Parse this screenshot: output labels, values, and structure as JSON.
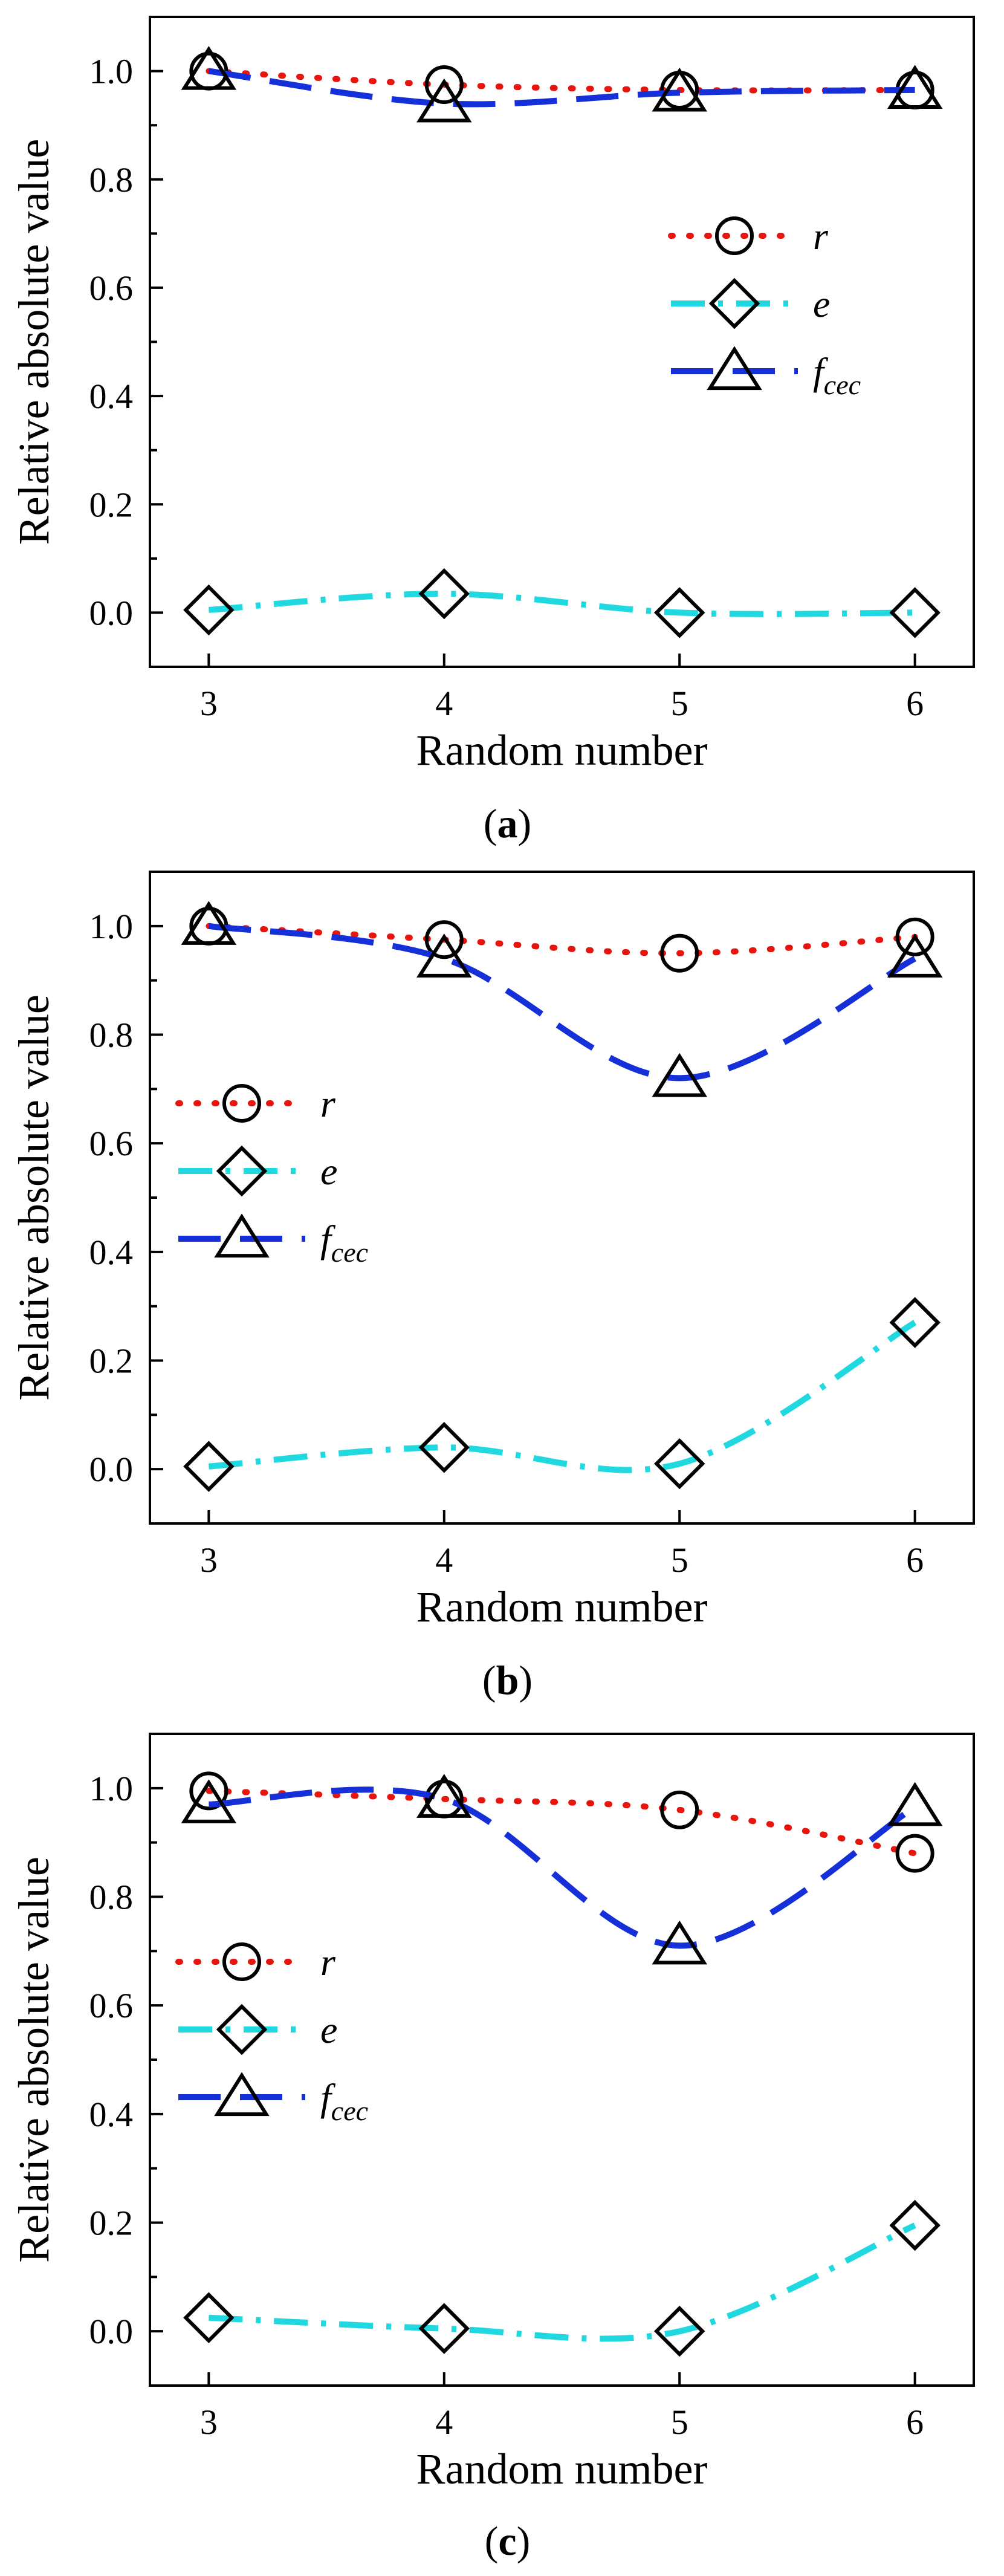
{
  "figure": {
    "panels": [
      {
        "caption_letter": "a"
      },
      {
        "caption_letter": "b"
      },
      {
        "caption_letter": "c"
      }
    ]
  },
  "colors": {
    "r": "#e8150f",
    "e": "#1fd8e0",
    "f": "#1530d8",
    "axis": "#000000",
    "marker": "#000000"
  },
  "chart_data": [
    {
      "type": "line",
      "panel": "a",
      "xlabel": "Random number",
      "ylabel": "Relative absolute value",
      "xlim": [
        2.75,
        6.25
      ],
      "ylim": [
        -0.1,
        1.1
      ],
      "xticks": [
        3,
        4,
        5,
        6
      ],
      "yticks": [
        0.0,
        0.2,
        0.4,
        0.6,
        0.8,
        1.0
      ],
      "ytick_labels": [
        "0.0",
        "0.2",
        "0.4",
        "0.6",
        "0.8",
        "1.0"
      ],
      "x": [
        3,
        4,
        5,
        6
      ],
      "legend_position": "center-right",
      "series": [
        {
          "name": "r",
          "label_base": "r",
          "label_sub": "",
          "values": [
            1.0,
            0.975,
            0.965,
            0.965
          ],
          "line": "dotted",
          "marker": "circle"
        },
        {
          "name": "e",
          "label_base": "e",
          "label_sub": "",
          "values": [
            0.005,
            0.035,
            0.0,
            0.0
          ],
          "line": "dashdot",
          "marker": "diamond"
        },
        {
          "name": "fcec",
          "label_base": "f",
          "label_sub": "cec",
          "values": [
            1.0,
            0.94,
            0.96,
            0.965
          ],
          "line": "dashed",
          "marker": "triangle"
        }
      ]
    },
    {
      "type": "line",
      "panel": "b",
      "xlabel": "Random number",
      "ylabel": "Relative absolute value",
      "xlim": [
        2.75,
        6.25
      ],
      "ylim": [
        -0.1,
        1.1
      ],
      "xticks": [
        3,
        4,
        5,
        6
      ],
      "yticks": [
        0.0,
        0.2,
        0.4,
        0.6,
        0.8,
        1.0
      ],
      "ytick_labels": [
        "0.0",
        "0.2",
        "0.4",
        "0.6",
        "0.8",
        "1.0"
      ],
      "x": [
        3,
        4,
        5,
        6
      ],
      "legend_position": "center-left",
      "series": [
        {
          "name": "r",
          "label_base": "r",
          "label_sub": "",
          "values": [
            1.0,
            0.975,
            0.95,
            0.98
          ],
          "line": "dotted",
          "marker": "circle"
        },
        {
          "name": "e",
          "label_base": "e",
          "label_sub": "",
          "values": [
            0.005,
            0.04,
            0.01,
            0.27
          ],
          "line": "dashdot",
          "marker": "diamond"
        },
        {
          "name": "fcec",
          "label_base": "f",
          "label_sub": "cec",
          "values": [
            1.0,
            0.94,
            0.72,
            0.94
          ],
          "line": "dashed",
          "marker": "triangle"
        }
      ]
    },
    {
      "type": "line",
      "panel": "c",
      "xlabel": "Random number",
      "ylabel": "Relative absolute value",
      "xlim": [
        2.75,
        6.25
      ],
      "ylim": [
        -0.1,
        1.1
      ],
      "xticks": [
        3,
        4,
        5,
        6
      ],
      "yticks": [
        0.0,
        0.2,
        0.4,
        0.6,
        0.8,
        1.0
      ],
      "ytick_labels": [
        "0.0",
        "0.2",
        "0.4",
        "0.6",
        "0.8",
        "1.0"
      ],
      "x": [
        3,
        4,
        5,
        6
      ],
      "legend_position": "center-left",
      "series": [
        {
          "name": "r",
          "label_base": "r",
          "label_sub": "",
          "values": [
            0.995,
            0.98,
            0.96,
            0.88
          ],
          "line": "dotted",
          "marker": "circle"
        },
        {
          "name": "e",
          "label_base": "e",
          "label_sub": "",
          "values": [
            0.025,
            0.005,
            0.0,
            0.195
          ],
          "line": "dashdot",
          "marker": "diamond"
        },
        {
          "name": "fcec",
          "label_base": "f",
          "label_sub": "cec",
          "values": [
            0.97,
            0.98,
            0.71,
            0.965
          ],
          "line": "dashed",
          "marker": "triangle"
        }
      ]
    }
  ]
}
